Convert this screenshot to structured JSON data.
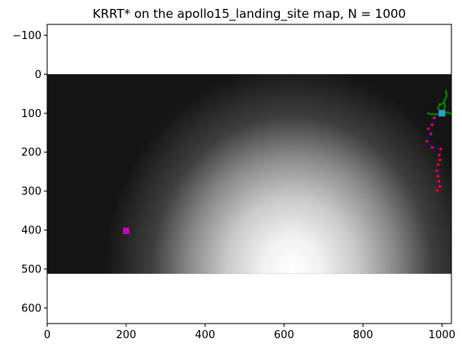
{
  "chart_data": {
    "type": "heatmap",
    "title": "KRRT* on the apollo15_landing_site map, N = 1000",
    "xlabel": "",
    "ylabel": "",
    "xlim": [
      0,
      1024
    ],
    "ylim": [
      640,
      -128
    ],
    "y_inverted": true,
    "grid": false,
    "xticks": [
      0,
      200,
      400,
      600,
      800,
      1000
    ],
    "yticks": [
      -100,
      0,
      100,
      200,
      300,
      400,
      500,
      600
    ],
    "map_extent": {
      "x": [
        0,
        1024
      ],
      "y": [
        0,
        512
      ]
    },
    "colormap": "gray",
    "heightmap_peak": {
      "x": 620,
      "y": 500
    },
    "markers": [
      {
        "name": "start",
        "shape": "square",
        "color": "#c000c0",
        "x": 200,
        "y": 402
      },
      {
        "name": "goal",
        "shape": "square",
        "color": "#20a8c8",
        "x": 1000,
        "y": 100
      }
    ],
    "path": {
      "line_color": "#0000ff",
      "point_color": "#ff0000",
      "points": [
        {
          "x": 1000,
          "y": 100
        },
        {
          "x": 980,
          "y": 112
        },
        {
          "x": 975,
          "y": 130
        },
        {
          "x": 965,
          "y": 140
        },
        {
          "x": 972,
          "y": 153
        },
        {
          "x": 962,
          "y": 172
        },
        {
          "x": 975,
          "y": 188
        },
        {
          "x": 997,
          "y": 192
        },
        {
          "x": 993,
          "y": 208
        },
        {
          "x": 995,
          "y": 220
        },
        {
          "x": 990,
          "y": 232
        },
        {
          "x": 987,
          "y": 248
        },
        {
          "x": 990,
          "y": 262
        },
        {
          "x": 992,
          "y": 275
        },
        {
          "x": 995,
          "y": 288
        },
        {
          "x": 988,
          "y": 298
        }
      ]
    },
    "tree": {
      "color": "#007700",
      "segments": [
        [
          [
            1000,
            100
          ],
          [
            1008,
            85
          ]
        ],
        [
          [
            1008,
            85
          ],
          [
            1005,
            70
          ]
        ],
        [
          [
            1005,
            70
          ],
          [
            1012,
            55
          ]
        ],
        [
          [
            1012,
            55
          ],
          [
            1010,
            42
          ]
        ],
        [
          [
            1000,
            100
          ],
          [
            990,
            88
          ]
        ],
        [
          [
            990,
            88
          ],
          [
            994,
            76
          ]
        ],
        [
          [
            1000,
            100
          ],
          [
            1015,
            98
          ]
        ],
        [
          [
            1015,
            98
          ],
          [
            1025,
            103
          ]
        ],
        [
          [
            1000,
            100
          ],
          [
            985,
            103
          ]
        ],
        [
          [
            985,
            103
          ],
          [
            970,
            102
          ]
        ],
        [
          [
            970,
            102
          ],
          [
            964,
            100
          ]
        ],
        [
          [
            1005,
            70
          ],
          [
            998,
            78
          ]
        ]
      ]
    }
  }
}
